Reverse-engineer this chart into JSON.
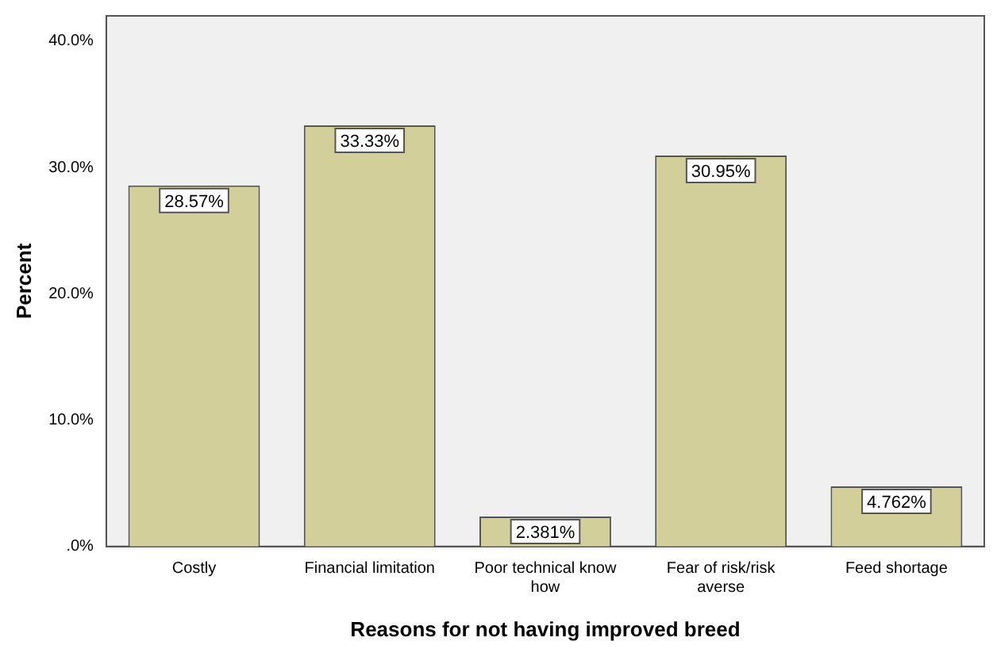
{
  "chart_data": {
    "type": "bar",
    "xlabel": "Reasons for not having improved breed",
    "ylabel": "Percent",
    "categories": [
      "Costly",
      "Financial limitation",
      "Poor technical know how",
      "Fear of risk/risk averse",
      "Feed shortage"
    ],
    "values": [
      28.57,
      33.33,
      2.381,
      30.95,
      4.762
    ],
    "value_labels": [
      "28.57%",
      "33.33%",
      "2.381%",
      "30.95%",
      "4.762%"
    ],
    "color": "#d3cf9a",
    "ylim": [
      0,
      42
    ],
    "yticks": [
      {
        "value": 0,
        "label": ".0%"
      },
      {
        "value": 10,
        "label": "10.0%"
      },
      {
        "value": 20,
        "label": "20.0%"
      },
      {
        "value": 30,
        "label": "30.0%"
      },
      {
        "value": 40,
        "label": "40.0%"
      }
    ],
    "grid": false,
    "legend": false
  }
}
